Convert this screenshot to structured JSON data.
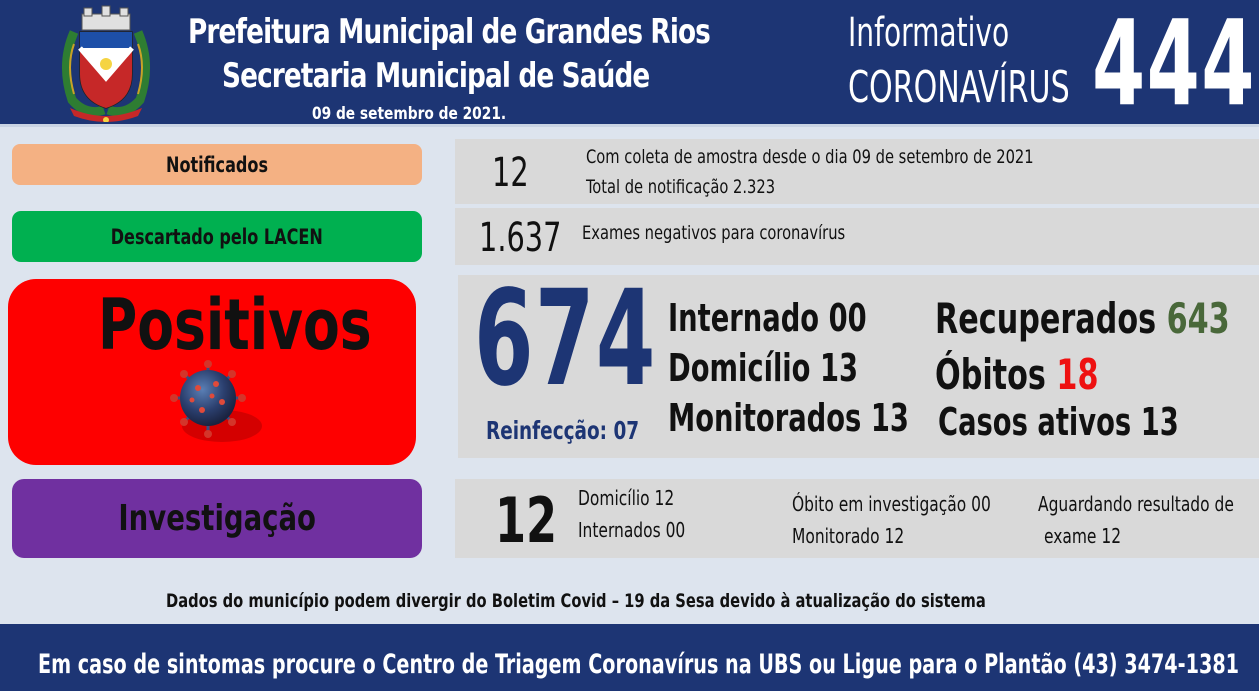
{
  "header": {
    "title_line1": "Prefeitura Municipal de Grandes Rios",
    "title_line2": "Secretaria Municipal de Saúde",
    "date": "09 de setembro  de 2021.",
    "info_line1": "Informativo",
    "info_line2": "CORONAVÍRUS",
    "bulletin_number": "444",
    "background_color": "#1d3574"
  },
  "notificados": {
    "label": "Notificados",
    "value": "12",
    "line1": "Com coleta de amostra desde o dia 09 de setembro de 2021",
    "line2": "Total de notificação  2.323",
    "color": "#f4b183"
  },
  "descartados": {
    "label": "Descartado  pelo LACEN",
    "value": "1.637",
    "text": "Exames negativos  para coronavírus",
    "color": "#00b050"
  },
  "positivos": {
    "label": "Positivos",
    "value": "674",
    "reinfeccao": "Reinfecção:  07",
    "internado": "Internado 00",
    "domicilio": "Domicílio 13",
    "monitorados": "Monitorados 13",
    "recuperados_label": "Recuperados ",
    "recuperados_value": "643",
    "obitos_label": "Óbitos ",
    "obitos_value": "18",
    "casos_ativos": "Casos ativos 13",
    "color": "#fe0000"
  },
  "investigacao": {
    "label": "Investigação",
    "value": "12",
    "domicilio": "Domicílio 12",
    "internados": "Internados 00",
    "obito": "Óbito  em investigação  00",
    "monitorado": "Monitorado 12",
    "aguardando_line1": "Aguardando resultado de",
    "aguardando_line2": "exame 12",
    "color": "#7030a0"
  },
  "disclaimer": "Dados do município  podem  divergir  do Boletim  Covid – 19 da Sesa devido à atualização  do sistema",
  "footer": "Em caso de sintomas  procure  o Centro de Triagem  Coronavírus  na UBS ou Ligue para o Plantão  (43) 3474-1381"
}
